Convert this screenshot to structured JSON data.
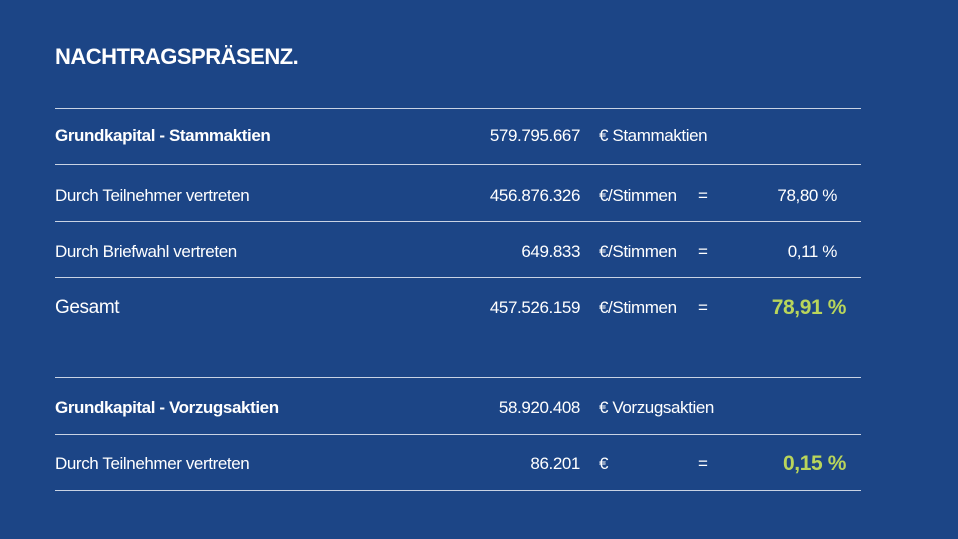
{
  "title": "NACHTRAGSPRÄSENZ.",
  "section1": {
    "header": {
      "label": "Grundkapital - Stammaktien",
      "value": "579.795.667",
      "unit": "€  Stammaktien"
    },
    "rows": [
      {
        "label": "Durch Teilnehmer vertreten",
        "value": "456.876.326",
        "unit": "€/Stimmen",
        "eq": "=",
        "pct": "78,80 %"
      },
      {
        "label": "Durch Briefwahl vertreten",
        "value": "649.833",
        "unit": "€/Stimmen",
        "eq": "=",
        "pct": "0,11 %"
      }
    ],
    "total": {
      "label": "Gesamt",
      "value": "457.526.159",
      "unit": "€/Stimmen",
      "eq": "=",
      "pct": "78,91 %"
    }
  },
  "section2": {
    "header": {
      "label": "Grundkapital - Vorzugsaktien",
      "value": "58.920.408",
      "unit": "€  Vorzugsaktien"
    },
    "rows": [
      {
        "label": "Durch Teilnehmer vertreten",
        "value": "86.201",
        "unit": "€",
        "eq": "=",
        "pct": "0,15 %"
      }
    ]
  },
  "colors": {
    "background": "#1c4586",
    "accent": "#b9d55b",
    "text": "#ffffff"
  }
}
